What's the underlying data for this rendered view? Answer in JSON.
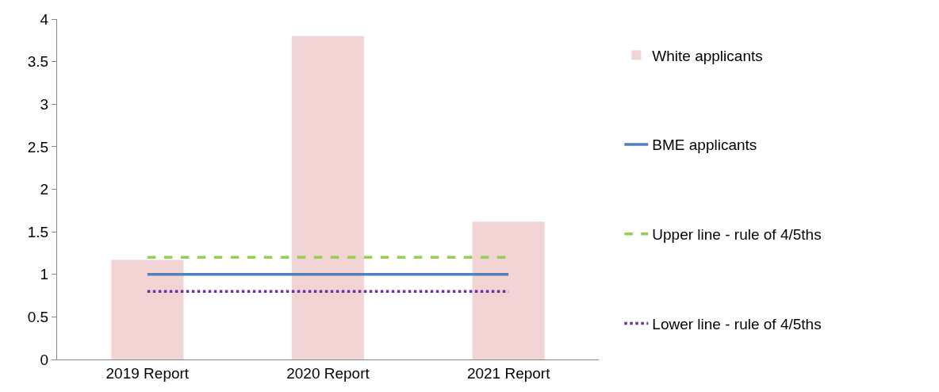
{
  "chart_data": {
    "type": "bar",
    "categories": [
      "2019 Report",
      "2020 Report",
      "2021 Report"
    ],
    "series": [
      {
        "name": "White applicants",
        "color": "#f2d4d4",
        "values": [
          1.17,
          3.8,
          1.62
        ]
      },
      {
        "name": "BME applicants",
        "type": "line",
        "color": "#4f81bd",
        "line_style": "solid",
        "values": [
          1,
          1,
          1
        ]
      },
      {
        "name": "Upper line - rule of 4/5ths",
        "type": "line",
        "color": "#92d050",
        "line_style": "dashed",
        "values": [
          1.2,
          1.2,
          1.2
        ]
      },
      {
        "name": "Lower line - rule of 4/5ths",
        "type": "line",
        "color": "#7030a0",
        "line_style": "dotted",
        "values": [
          0.8,
          0.8,
          0.8
        ]
      }
    ],
    "ylim": [
      0,
      4
    ],
    "yticks": [
      0,
      0.5,
      1,
      1.5,
      2,
      2.5,
      3,
      3.5,
      4
    ],
    "legend": "right"
  }
}
